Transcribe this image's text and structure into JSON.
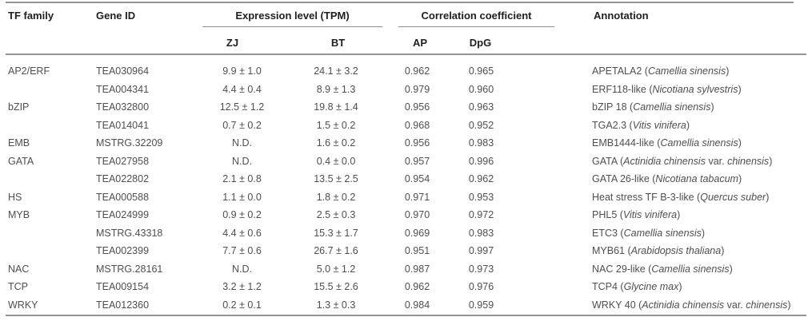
{
  "table": {
    "headers": {
      "tf_family": "TF family",
      "gene_id": "Gene ID",
      "expression_group": "Expression level (TPM)",
      "correlation_group": "Correlation coefficient",
      "zj": "ZJ",
      "bt": "BT",
      "ap": "AP",
      "dpg": "DpG",
      "annotation": "Annotation"
    },
    "rows": [
      {
        "tf_family": "AP2/ERF",
        "gene_id": "TEA030964",
        "zj": "9.9 ± 1.0",
        "bt": "24.1 ± 3.2",
        "ap": "0.962",
        "dpg": "0.965",
        "annotation": [
          {
            "text": "APETALA2 (",
            "italic": false
          },
          {
            "text": "Camellia sinensis",
            "italic": true
          },
          {
            "text": ")",
            "italic": false
          }
        ]
      },
      {
        "tf_family": "",
        "gene_id": "TEA004341",
        "zj": "4.4 ± 0.4",
        "bt": "8.9 ± 1.3",
        "ap": "0.979",
        "dpg": "0.960",
        "annotation": [
          {
            "text": "ERF118-like (",
            "italic": false
          },
          {
            "text": "Nicotiana sylvestris",
            "italic": true
          },
          {
            "text": ")",
            "italic": false
          }
        ]
      },
      {
        "tf_family": "bZIP",
        "gene_id": "TEA032800",
        "zj": "12.5 ± 1.2",
        "bt": "19.8 ± 1.4",
        "ap": "0.956",
        "dpg": "0.963",
        "annotation": [
          {
            "text": "bZIP 18 (",
            "italic": false
          },
          {
            "text": "Camellia sinensis",
            "italic": true
          },
          {
            "text": ")",
            "italic": false
          }
        ]
      },
      {
        "tf_family": "",
        "gene_id": "TEA014041",
        "zj": "0.7 ± 0.2",
        "bt": "1.5 ± 0.2",
        "ap": "0.968",
        "dpg": "0.952",
        "annotation": [
          {
            "text": "TGA2.3 (",
            "italic": false
          },
          {
            "text": "Vitis vinifera",
            "italic": true
          },
          {
            "text": ")",
            "italic": false
          }
        ]
      },
      {
        "tf_family": "EMB",
        "gene_id": "MSTRG.32209",
        "zj": "N.D.",
        "bt": "1.6 ± 0.2",
        "ap": "0.956",
        "dpg": "0.983",
        "annotation": [
          {
            "text": "EMB1444-like (",
            "italic": false
          },
          {
            "text": "Camellia sinensis",
            "italic": true
          },
          {
            "text": ")",
            "italic": false
          }
        ]
      },
      {
        "tf_family": "GATA",
        "gene_id": "TEA027958",
        "zj": "N.D.",
        "bt": "0.4 ± 0.0",
        "ap": "0.957",
        "dpg": "0.996",
        "annotation": [
          {
            "text": "GATA (",
            "italic": false
          },
          {
            "text": "Actinidia chinensis",
            "italic": true
          },
          {
            "text": " var. ",
            "italic": false
          },
          {
            "text": "chinensis",
            "italic": true
          },
          {
            "text": ")",
            "italic": false
          }
        ]
      },
      {
        "tf_family": "",
        "gene_id": "TEA022802",
        "zj": "2.1 ± 0.8",
        "bt": "13.5 ± 2.5",
        "ap": "0.954",
        "dpg": "0.962",
        "annotation": [
          {
            "text": "GATA 26-like (",
            "italic": false
          },
          {
            "text": "Nicotiana tabacum",
            "italic": true
          },
          {
            "text": ")",
            "italic": false
          }
        ]
      },
      {
        "tf_family": "HS",
        "gene_id": "TEA000588",
        "zj": "1.1 ± 0.0",
        "bt": "1.8 ± 0.2",
        "ap": "0.971",
        "dpg": "0.953",
        "annotation": [
          {
            "text": "Heat stress TF B-3-like (",
            "italic": false
          },
          {
            "text": "Quercus suber",
            "italic": true
          },
          {
            "text": ")",
            "italic": false
          }
        ]
      },
      {
        "tf_family": "MYB",
        "gene_id": "TEA024999",
        "zj": "0.9 ± 0.2",
        "bt": "2.5 ± 0.3",
        "ap": "0.970",
        "dpg": "0.972",
        "annotation": [
          {
            "text": "PHL5 (",
            "italic": false
          },
          {
            "text": "Vitis vinifera",
            "italic": true
          },
          {
            "text": ")",
            "italic": false
          }
        ]
      },
      {
        "tf_family": "",
        "gene_id": "MSTRG.43318",
        "zj": "4.4 ± 0.6",
        "bt": "15.3 ± 1.7",
        "ap": "0.969",
        "dpg": "0.983",
        "annotation": [
          {
            "text": "ETC3 (",
            "italic": false
          },
          {
            "text": "Camellia sinensis",
            "italic": true
          },
          {
            "text": ")",
            "italic": false
          }
        ]
      },
      {
        "tf_family": "",
        "gene_id": "TEA002399",
        "zj": "7.7 ± 0.6",
        "bt": "26.7 ± 1.6",
        "ap": "0.951",
        "dpg": "0.997",
        "annotation": [
          {
            "text": "MYB61 (",
            "italic": false
          },
          {
            "text": "Arabidopsis thaliana",
            "italic": true
          },
          {
            "text": ")",
            "italic": false
          }
        ]
      },
      {
        "tf_family": "NAC",
        "gene_id": "MSTRG.28161",
        "zj": "N.D.",
        "bt": "5.0 ± 1.2",
        "ap": "0.987",
        "dpg": "0.973",
        "annotation": [
          {
            "text": "NAC 29-like (",
            "italic": false
          },
          {
            "text": "Camellia sinensis",
            "italic": true
          },
          {
            "text": ")",
            "italic": false
          }
        ]
      },
      {
        "tf_family": "TCP",
        "gene_id": "TEA009154",
        "zj": "3.2 ± 1.2",
        "bt": "15.5 ± 2.6",
        "ap": "0.962",
        "dpg": "0.976",
        "annotation": [
          {
            "text": "TCP4 (",
            "italic": false
          },
          {
            "text": "Glycine max",
            "italic": true
          },
          {
            "text": ")",
            "italic": false
          }
        ]
      },
      {
        "tf_family": "WRKY",
        "gene_id": "TEA012360",
        "zj": "0.2 ± 0.1",
        "bt": "1.3 ± 0.3",
        "ap": "0.984",
        "dpg": "0.959",
        "annotation": [
          {
            "text": "WRKY 40 (",
            "italic": false
          },
          {
            "text": "Actinidia chinensis",
            "italic": true
          },
          {
            "text": " var. ",
            "italic": false
          },
          {
            "text": "chinensis",
            "italic": true
          },
          {
            "text": ")",
            "italic": false
          }
        ]
      }
    ]
  }
}
